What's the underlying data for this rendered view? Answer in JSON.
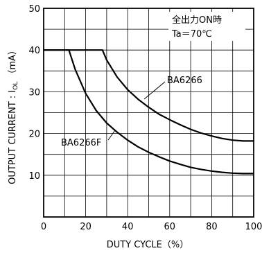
{
  "chart_data": {
    "type": "line",
    "xlabel": "DUTY CYCLE（%）",
    "ylabel_main": "OUTPUT CURRENT : I",
    "ylabel_sub": "OL",
    "ylabel_unit": "（mA）",
    "xlim": [
      0,
      100
    ],
    "ylim": [
      0,
      50
    ],
    "x_ticks": [
      0,
      20,
      40,
      60,
      80,
      100
    ],
    "y_ticks": [
      10,
      20,
      30,
      40,
      50
    ],
    "grid": true,
    "annotations": [
      "全出力ON時",
      "Ta＝70℃"
    ],
    "series": [
      {
        "name": "BA6266",
        "x": [
          0,
          28,
          30,
          35,
          40,
          45,
          50,
          55,
          60,
          65,
          70,
          75,
          80,
          85,
          90,
          95,
          100
        ],
        "y": [
          40,
          40,
          37.6,
          33.5,
          30.5,
          28.2,
          26.3,
          24.6,
          23.3,
          22.1,
          21.0,
          20.1,
          19.4,
          18.8,
          18.4,
          18.2,
          18.2
        ]
      },
      {
        "name": "BA6266F",
        "x": [
          0,
          12,
          15,
          20,
          25,
          30,
          35,
          40,
          45,
          50,
          55,
          60,
          65,
          70,
          75,
          80,
          85,
          90,
          95,
          100
        ],
        "y": [
          40,
          40,
          35.4,
          29.6,
          25.5,
          22.5,
          20.3,
          18.4,
          16.8,
          15.5,
          14.4,
          13.4,
          12.6,
          11.9,
          11.4,
          11.0,
          10.7,
          10.5,
          10.4,
          10.4
        ]
      }
    ]
  }
}
